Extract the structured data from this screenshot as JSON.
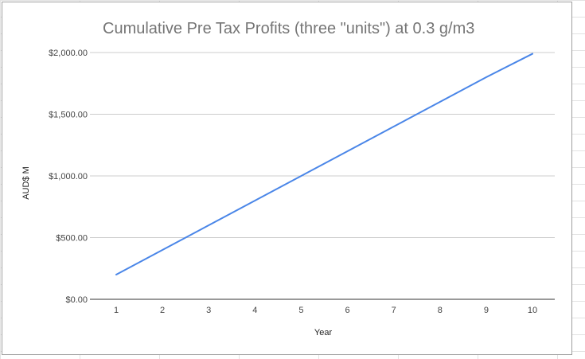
{
  "chart_data": {
    "type": "line",
    "title": "Cumulative Pre Tax Profits (three \"units\") at 0.3 g/m3",
    "xlabel": "Year",
    "ylabel": "AUD$ M",
    "x": [
      1,
      2,
      3,
      4,
      5,
      6,
      7,
      8,
      9,
      10
    ],
    "x_tick_labels": [
      "1",
      "2",
      "3",
      "4",
      "5",
      "6",
      "7",
      "8",
      "9",
      "10"
    ],
    "series": [
      {
        "values": [
          200,
          400,
          600,
          800,
          1000,
          1200,
          1400,
          1600,
          1800,
          1990
        ],
        "color": "#4a86e8"
      }
    ],
    "ylim": [
      0,
      2000
    ],
    "y_ticks": [
      0,
      500,
      1000,
      1500,
      2000
    ],
    "y_tick_labels": [
      "$0.00",
      "$500.00",
      "$1,000.00",
      "$1,500.00",
      "$2,000.00"
    ],
    "grid": true,
    "legend": "none"
  }
}
